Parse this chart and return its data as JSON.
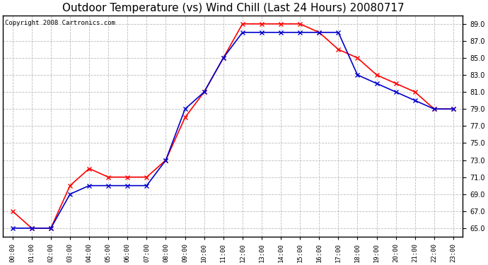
{
  "title": "Outdoor Temperature (vs) Wind Chill (Last 24 Hours) 20080717",
  "copyright": "Copyright 2008 Cartronics.com",
  "hours": [
    "00:00",
    "01:00",
    "02:00",
    "03:00",
    "04:00",
    "05:00",
    "06:00",
    "07:00",
    "08:00",
    "09:00",
    "10:00",
    "11:00",
    "12:00",
    "13:00",
    "14:00",
    "15:00",
    "16:00",
    "17:00",
    "18:00",
    "19:00",
    "20:00",
    "21:00",
    "22:00",
    "23:00"
  ],
  "outdoor_temp": [
    67,
    65,
    65,
    70,
    72,
    71,
    71,
    71,
    73,
    78,
    81,
    85,
    89,
    89,
    89,
    89,
    88,
    86,
    85,
    83,
    82,
    81,
    79,
    79
  ],
  "wind_chill": [
    65,
    65,
    65,
    69,
    70,
    70,
    70,
    70,
    73,
    79,
    81,
    85,
    88,
    88,
    88,
    88,
    88,
    88,
    83,
    82,
    81,
    80,
    79,
    79
  ],
  "temp_color": "#FF0000",
  "chill_color": "#0000CC",
  "ylim_min": 64.0,
  "ylim_max": 90.0,
  "ytick_values": [
    65.0,
    67.0,
    69.0,
    71.0,
    73.0,
    75.0,
    77.0,
    79.0,
    81.0,
    83.0,
    85.0,
    87.0,
    89.0
  ],
  "bg_color": "#FFFFFF",
  "grid_color": "#BBBBBB",
  "title_fontsize": 11,
  "copyright_fontsize": 6.5,
  "marker": "x",
  "markersize": 4,
  "linewidth": 1.2
}
